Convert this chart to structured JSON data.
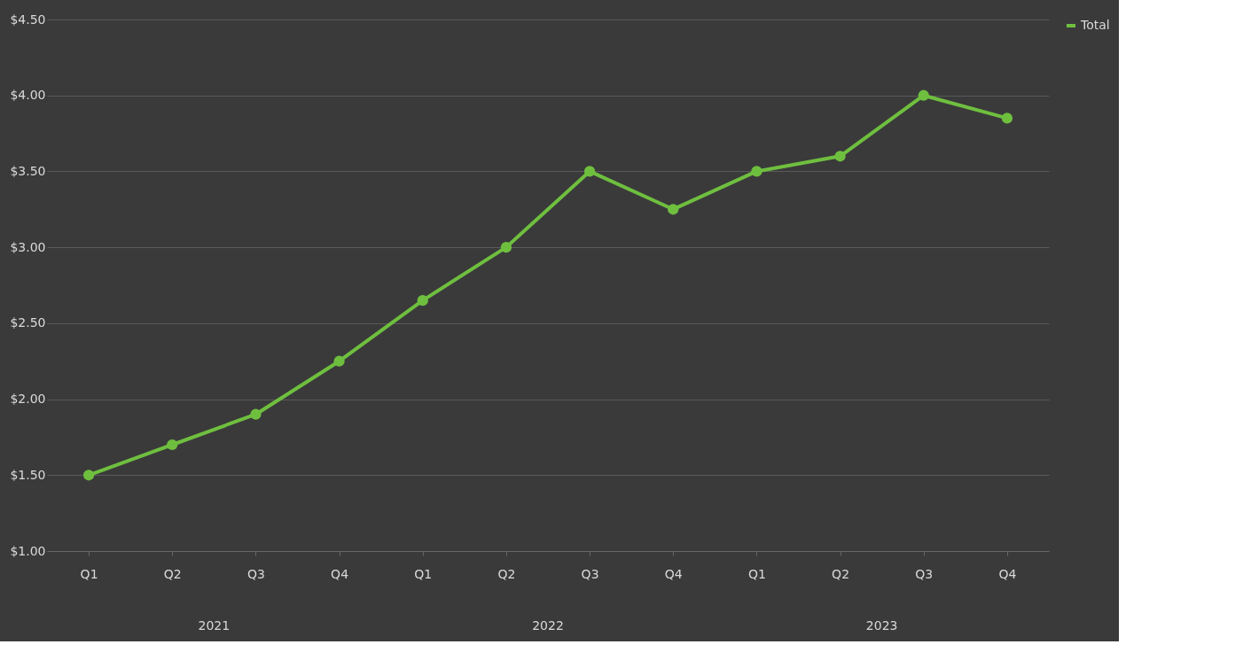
{
  "chart_data": {
    "type": "line",
    "categories": [
      "Q1",
      "Q2",
      "Q3",
      "Q4",
      "Q1",
      "Q2",
      "Q3",
      "Q4",
      "Q1",
      "Q2",
      "Q3",
      "Q4"
    ],
    "series": [
      {
        "name": "Total",
        "color": "#6fbf3f",
        "values": [
          1.5,
          1.7,
          1.9,
          2.25,
          2.65,
          3.0,
          3.5,
          3.25,
          3.5,
          3.6,
          4.0,
          3.85
        ]
      }
    ],
    "ylim": [
      1,
      4.5
    ],
    "yticks": [
      {
        "value": 1,
        "label": "$1.00"
      },
      {
        "value": 1.5,
        "label": "$1.50"
      },
      {
        "value": 2,
        "label": "$2.00"
      },
      {
        "value": 2.5,
        "label": "$2.50"
      },
      {
        "value": 3,
        "label": "$3.00"
      },
      {
        "value": 3.5,
        "label": "$3.50"
      },
      {
        "value": 4,
        "label": "$4.00"
      },
      {
        "value": 4.5,
        "label": "$4.50"
      }
    ],
    "annotations": [
      "2021",
      "2022",
      "2023"
    ],
    "grid": "y",
    "legend": "right",
    "marker": "circle",
    "line_style": "solid"
  }
}
